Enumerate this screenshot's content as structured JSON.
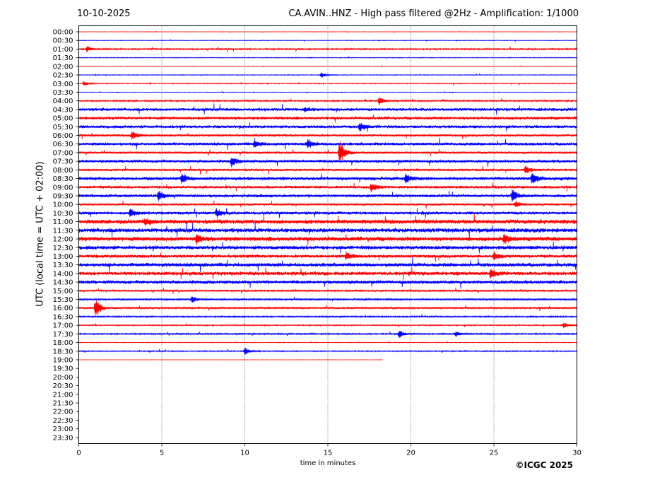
{
  "header": {
    "date": "10-10-2025",
    "title": "CA.AVIN..HNZ - High pass filtered @2Hz - Amplification: 1/1000"
  },
  "footer": {
    "copyright": "©ICGC 2025"
  },
  "chart_data": {
    "type": "line",
    "title": "CA.AVIN..HNZ - High pass filtered @2Hz - Amplification: 1/1000",
    "subtitle": "10-10-2025",
    "xlabel": "time in minutes",
    "ylabel": "UTC (local time = UTC + 02:00)",
    "xlim": [
      0,
      30
    ],
    "x_ticks": [
      0,
      5,
      10,
      15,
      20,
      25,
      30
    ],
    "vertical_gridlines": [
      5,
      10,
      15,
      20,
      25
    ],
    "row_labels": [
      "00:00",
      "00:30",
      "01:00",
      "01:30",
      "02:00",
      "02:30",
      "03:00",
      "03:30",
      "04:00",
      "04:30",
      "05:00",
      "05:30",
      "06:00",
      "06:30",
      "07:00",
      "07:30",
      "08:00",
      "08:30",
      "09:00",
      "09:30",
      "10:00",
      "10:30",
      "11:00",
      "11:30",
      "12:00",
      "12:30",
      "13:00",
      "13:30",
      "14:00",
      "14:30",
      "15:00",
      "15:30",
      "16:00",
      "16:30",
      "17:00",
      "17:30",
      "18:00",
      "18:30",
      "19:00",
      "19:30",
      "20:00",
      "20:30",
      "21:00",
      "21:30",
      "22:00",
      "22:30",
      "23:00",
      "23:30"
    ],
    "colors": {
      "even_rows": "#ff0000",
      "odd_rows": "#0000ff"
    },
    "last_trace_end_minutes": 18.3,
    "trace_noise_levels": [
      0.3,
      0.5,
      1.2,
      0.6,
      0.4,
      0.6,
      0.7,
      0.4,
      1.2,
      2.6,
      2.6,
      2.6,
      2.0,
      2.6,
      1.8,
      2.6,
      2.0,
      2.8,
      2.4,
      2.6,
      1.8,
      2.6,
      3.6,
      3.6,
      3.6,
      3.2,
      2.8,
      3.2,
      3.2,
      3.0,
      1.4,
      1.4,
      1.6,
      1.2,
      0.9,
      1.2,
      0.5,
      0.9,
      0.2
    ],
    "events": [
      {
        "row": "01:00",
        "minute": 0.5,
        "amplitude": 4
      },
      {
        "row": "02:30",
        "minute": 14.6,
        "amplitude": 4
      },
      {
        "row": "03:00",
        "minute": 0.3,
        "amplitude": 3
      },
      {
        "row": "04:00",
        "minute": 18.1,
        "amplitude": 6
      },
      {
        "row": "04:30",
        "minute": 13.6,
        "amplitude": 3
      },
      {
        "row": "05:30",
        "minute": 16.9,
        "amplitude": 6
      },
      {
        "row": "06:00",
        "minute": 3.2,
        "amplitude": 6
      },
      {
        "row": "06:30",
        "minute": 10.6,
        "amplitude": 5
      },
      {
        "row": "06:30",
        "minute": 13.8,
        "amplitude": 6
      },
      {
        "row": "07:00",
        "minute": 15.7,
        "amplitude": 18
      },
      {
        "row": "07:30",
        "minute": 9.2,
        "amplitude": 6
      },
      {
        "row": "08:00",
        "minute": 26.9,
        "amplitude": 5
      },
      {
        "row": "08:30",
        "minute": 6.2,
        "amplitude": 7
      },
      {
        "row": "08:30",
        "minute": 19.7,
        "amplitude": 7
      },
      {
        "row": "08:30",
        "minute": 27.3,
        "amplitude": 8
      },
      {
        "row": "09:00",
        "minute": 17.6,
        "amplitude": 6
      },
      {
        "row": "09:30",
        "minute": 4.8,
        "amplitude": 7
      },
      {
        "row": "09:30",
        "minute": 26.1,
        "amplitude": 9
      },
      {
        "row": "10:00",
        "minute": 26.3,
        "amplitude": 4
      },
      {
        "row": "10:30",
        "minute": 3.1,
        "amplitude": 6
      },
      {
        "row": "10:30",
        "minute": 8.3,
        "amplitude": 6
      },
      {
        "row": "11:00",
        "minute": 4.0,
        "amplitude": 5
      },
      {
        "row": "12:00",
        "minute": 7.1,
        "amplitude": 6
      },
      {
        "row": "12:00",
        "minute": 25.6,
        "amplitude": 6
      },
      {
        "row": "13:00",
        "minute": 16.1,
        "amplitude": 5
      },
      {
        "row": "13:00",
        "minute": 25.0,
        "amplitude": 5
      },
      {
        "row": "14:00",
        "minute": 24.8,
        "amplitude": 6
      },
      {
        "row": "15:30",
        "minute": 6.8,
        "amplitude": 5
      },
      {
        "row": "16:00",
        "minute": 1.0,
        "amplitude": 14
      },
      {
        "row": "17:00",
        "minute": 29.2,
        "amplitude": 4
      },
      {
        "row": "17:30",
        "minute": 19.3,
        "amplitude": 5
      },
      {
        "row": "17:30",
        "minute": 22.7,
        "amplitude": 4
      },
      {
        "row": "18:30",
        "minute": 10.0,
        "amplitude": 6
      }
    ]
  }
}
